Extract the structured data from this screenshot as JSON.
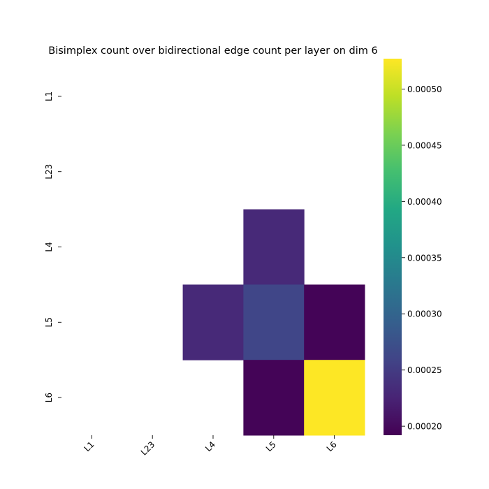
{
  "chart_data": {
    "type": "heatmap",
    "title": "Bisimplex count over bidirectional edge count per layer on dim 6",
    "xlabel": "",
    "ylabel": "",
    "x_categories": [
      "L1",
      "L23",
      "L4",
      "L5",
      "L6"
    ],
    "y_categories": [
      "L1",
      "L23",
      "L4",
      "L5",
      "L6"
    ],
    "values": [
      [
        null,
        null,
        null,
        null,
        null
      ],
      [
        null,
        null,
        null,
        null,
        null
      ],
      [
        null,
        null,
        null,
        0.000231,
        null
      ],
      [
        null,
        null,
        0.000231,
        0.000262,
        0.000195
      ],
      [
        null,
        null,
        null,
        0.000195,
        0.000527
      ]
    ],
    "colorbar": {
      "colormap": "viridis",
      "range": [
        0.000192,
        0.000527
      ],
      "ticks": [
        0.0002,
        0.00025,
        0.0003,
        0.00035,
        0.0004,
        0.00045,
        0.0005
      ],
      "tick_labels": [
        "0.00020",
        "0.00025",
        "0.00030",
        "0.00035",
        "0.00040",
        "0.00045",
        "0.00050"
      ]
    },
    "grid": false,
    "legend": "colorbar-right"
  }
}
